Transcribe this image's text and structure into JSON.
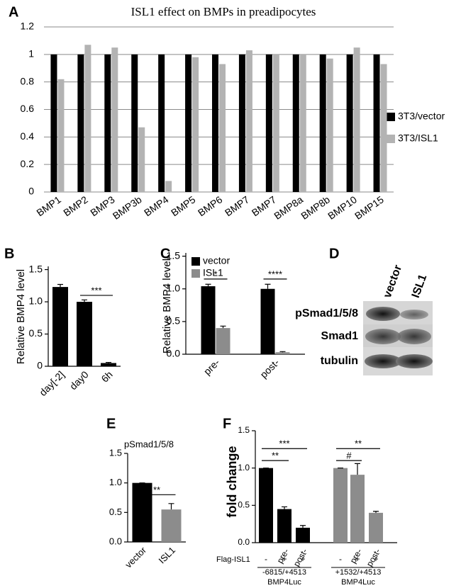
{
  "chart_data": [
    {
      "type": "bar",
      "panel": "A",
      "title": "ISL1 effect on BMPs in preadipocytes",
      "categories": [
        "BMP1",
        "BMP2",
        "BMP3",
        "BMP3b",
        "BMP4",
        "BMP5",
        "BMP6",
        "BMP7",
        "BMP7",
        "BMP8a",
        "BMP8b",
        "BMP10",
        "BMP15"
      ],
      "series": [
        {
          "name": "3T3/vector",
          "color": "#000000",
          "values": [
            1,
            1,
            1,
            1,
            1,
            1,
            1,
            1,
            1,
            1,
            1,
            1,
            1
          ]
        },
        {
          "name": "3T3/ISL1",
          "color": "#b3b3b3",
          "values": [
            0.82,
            1.07,
            1.05,
            0.47,
            0.08,
            0.98,
            0.93,
            1.03,
            1.0,
            1.0,
            0.97,
            1.05,
            0.93
          ]
        }
      ],
      "ylim": [
        0,
        1.2
      ],
      "yticks": [
        0,
        0.2,
        0.4,
        0.6,
        0.8,
        1,
        1.2
      ],
      "grid": true,
      "legend": "right"
    },
    {
      "type": "bar",
      "panel": "B",
      "y_label": "Relative BMP4 level",
      "categories": [
        "day[-2]",
        "day0",
        "6h"
      ],
      "series": [
        {
          "color": "#000000",
          "values": [
            1.23,
            1.0,
            0.05
          ],
          "errors": [
            0.04,
            0.03,
            0.01
          ]
        }
      ],
      "ylim": [
        0,
        1.55
      ],
      "yticks": [
        0,
        0.5,
        {
          "value": 1,
          "label": "1.0"
        },
        1.5
      ],
      "significance": [
        {
          "label": "***",
          "bars": [
            [
              0,
              1
            ],
            [
              0,
              2
            ]
          ],
          "y": 1.1
        }
      ]
    },
    {
      "type": "bar",
      "panel": "C",
      "y_label": "Relative BMP4 level",
      "categories": [
        "pre-",
        "post-"
      ],
      "series": [
        {
          "name": "vector",
          "color": "#000000",
          "values": [
            1.04,
            1.0
          ],
          "errors": [
            0.03,
            0.07
          ]
        },
        {
          "name": "ISL1",
          "color": "#8c8c8c",
          "values": [
            0.4,
            0.03
          ],
          "errors": [
            0.03,
            0.01
          ]
        }
      ],
      "ylim": [
        0,
        1.55
      ],
      "yticks": [
        {
          "value": 0,
          "label": "0.0"
        },
        0.5,
        {
          "value": 1,
          "label": "1.0"
        },
        1.5
      ],
      "legend": "top-left",
      "significance": [
        {
          "label": "*",
          "bars": [
            [
              0,
              0
            ],
            [
              1,
              0
            ]
          ],
          "y": 1.15
        },
        {
          "label": "****",
          "bars": [
            [
              0,
              1
            ],
            [
              1,
              1
            ]
          ],
          "y": 1.15
        }
      ]
    },
    {
      "type": "bar",
      "panel": "E",
      "title": "pSmad1/5/8",
      "categories": [
        "vector",
        "ISL1"
      ],
      "series": [
        {
          "colors": [
            "#000000",
            "#8c8c8c"
          ],
          "values": [
            1.0,
            0.55
          ],
          "errors": [
            0,
            0.1
          ]
        }
      ],
      "ylim": [
        0,
        1.5
      ],
      "yticks": [
        {
          "value": 0,
          "label": "0.0"
        },
        0.5,
        {
          "value": 1,
          "label": "1.0"
        },
        1.5
      ],
      "significance": [
        {
          "label": "**",
          "bars": [
            [
              0,
              0
            ],
            [
              0,
              1
            ]
          ],
          "y": 0.8
        }
      ]
    },
    {
      "type": "bar",
      "panel": "F",
      "y_label": "fold change",
      "categories": [
        null,
        "pre-",
        "post-",
        null,
        "pre-",
        "post-"
      ],
      "series": [
        {
          "colors": [
            "#000000",
            "#000000",
            "#000000",
            "#8c8c8c",
            "#8c8c8c",
            "#8c8c8c"
          ],
          "values": [
            1.0,
            0.45,
            0.2,
            1.0,
            0.91,
            0.4
          ],
          "errors": [
            0,
            0.03,
            0.03,
            0,
            0.15,
            0.02
          ]
        }
      ],
      "ylim": [
        0,
        1.5
      ],
      "yticks": [
        {
          "value": 0,
          "label": "0.0"
        },
        0.5,
        {
          "value": 1,
          "label": "1.0"
        },
        1.5
      ],
      "row_label": "Flag-ISL1",
      "row_values": [
        "-",
        "+",
        "+",
        "-",
        "+",
        "+"
      ],
      "group_labels": [
        [
          "-6815/+4513",
          "BMP4Luc"
        ],
        [
          "+1532/+4513",
          "BMP4Luc"
        ]
      ],
      "significance": [
        {
          "label": "**",
          "bars": [
            [
              0,
              0
            ],
            [
              0,
              1
            ]
          ],
          "y": 1.1
        },
        {
          "label": "***",
          "bars": [
            [
              0,
              0
            ],
            [
              0,
              2
            ]
          ],
          "y": 1.26
        },
        {
          "label": "#",
          "bars": [
            [
              0,
              3
            ],
            [
              0,
              4
            ]
          ],
          "y": 1.1
        },
        {
          "label": "**",
          "bars": [
            [
              0,
              3
            ],
            [
              0,
              5
            ]
          ],
          "y": 1.26
        }
      ]
    }
  ],
  "blot": {
    "panel": "D",
    "lanes": [
      "vector",
      "ISL1"
    ],
    "rows": [
      "pSmad1/5/8",
      "Smad1",
      "tubulin"
    ]
  }
}
